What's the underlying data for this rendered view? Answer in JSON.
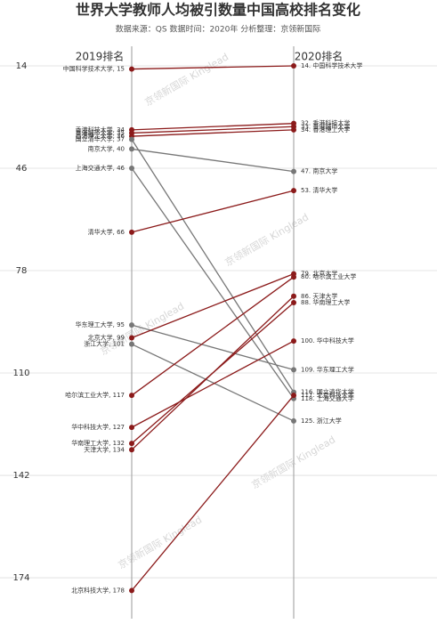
{
  "chart_data": {
    "type": "slope",
    "title": "世界大学教师人均被引数量中国高校排名变化",
    "subtitle": "数据来源：QS 数据时间：2020年 分析整理：京领新国际",
    "watermark": "京领新国际 Kinglead",
    "ylim": [
      9,
      184
    ],
    "yticks": [
      14,
      46,
      78,
      110,
      142,
      174
    ],
    "y_inverted": true,
    "grid": true,
    "categories": [
      "中国科学技术大学",
      "香港科技大学",
      "香港城市大学",
      "香港理工大学",
      "国立清华大学",
      "南京大学",
      "上海交通大学",
      "清华大学",
      "华东理工大学",
      "北京大学",
      "浙江大学",
      "哈尔滨工业大学",
      "华中科技大学",
      "华南理工大学",
      "天津大学",
      "北京科技大学"
    ],
    "colors": [
      "#8b1a1a",
      "#8b1a1a",
      "#8b1a1a",
      "#8b1a1a",
      "#777777",
      "#777777",
      "#777777",
      "#8b1a1a",
      "#777777",
      "#8b1a1a",
      "#777777",
      "#8b1a1a",
      "#8b1a1a",
      "#8b1a1a",
      "#8b1a1a",
      "#8b1a1a"
    ],
    "series": [
      {
        "name": "2019排名",
        "values": [
          15,
          34,
          35,
          36,
          37,
          40,
          46,
          66,
          95,
          99,
          101,
          117,
          127,
          132,
          134,
          178
        ],
        "value_labels": [
          "中国科学技术大学, 15",
          "香港科技大学, 34",
          "香港城市大学, 35",
          "香港理工大学, 36",
          "国立清华大学, 37",
          "南京大学, 40",
          "上海交通大学, 46",
          "清华大学, 66",
          "华东理工大学, 95",
          "北京大学, 99",
          "浙江大学, 101",
          "哈尔滨工业大学, 117",
          "华中科技大学, 127",
          "华南理工大学, 132",
          "天津大学, 134",
          "北京科技大学, 178"
        ]
      },
      {
        "name": "2020排名",
        "values": [
          14,
          32,
          33,
          34,
          116,
          47,
          118,
          53,
          109,
          79,
          125,
          80,
          100,
          88,
          86,
          117
        ],
        "value_labels": [
          "14. 中国科学技术大学",
          "32. 香港科技大学",
          "33. 香港城市大学",
          "34. 香港理工大学",
          "116. 国立清华大学",
          "47. 南京大学",
          "118. 上海交通大学",
          "53. 清华大学",
          "109. 华东理工大学",
          "79. 北京大学",
          "125. 浙江大学",
          "80. 哈尔滨工业大学",
          "100. 华中科技大学",
          "88. 华南理工大学",
          "86. 天津大学",
          "117. 北京科技大学"
        ]
      }
    ]
  }
}
